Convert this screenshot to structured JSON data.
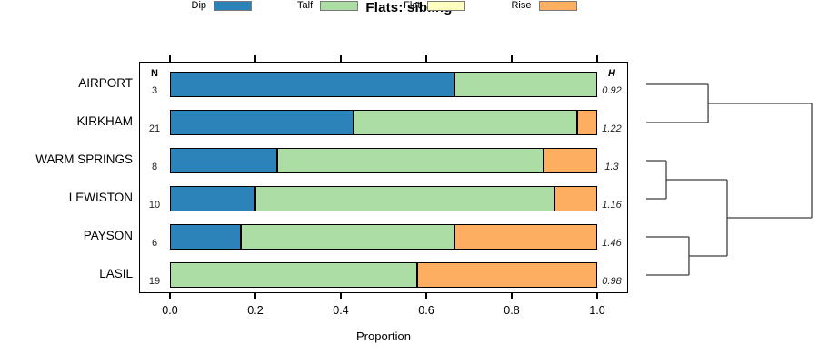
{
  "chart_data": {
    "type": "bar",
    "variant": "horizontal-stacked-with-dendrogram",
    "title": "Flats: sibling",
    "xlabel": "Proportion",
    "xlim": [
      0,
      1
    ],
    "xticks": [
      "0.0",
      "0.2",
      "0.4",
      "0.6",
      "0.8",
      "1.0"
    ],
    "n_header": "N",
    "h_header": "H",
    "legend": [
      {
        "label": "Dip",
        "color": "#2B83BA"
      },
      {
        "label": "Talf",
        "color": "#ABDDA4"
      },
      {
        "label": "Flat",
        "color": "#FFFFBF"
      },
      {
        "label": "Rise",
        "color": "#FDAE61"
      }
    ],
    "rows": [
      {
        "label": "AIRPORT",
        "n": 3,
        "h": "0.92",
        "values": [
          0.667,
          0.333,
          0,
          0
        ]
      },
      {
        "label": "KIRKHAM",
        "n": 21,
        "h": "1.22",
        "values": [
          0.429,
          0.524,
          0,
          0.048
        ]
      },
      {
        "label": "WARM SPRINGS",
        "n": 8,
        "h": "1.3",
        "values": [
          0.25,
          0.625,
          0,
          0.125
        ]
      },
      {
        "label": "LEWISTON",
        "n": 10,
        "h": "1.16",
        "values": [
          0.2,
          0.7,
          0,
          0.1
        ]
      },
      {
        "label": "PAYSON",
        "n": 6,
        "h": "1.46",
        "values": [
          0.167,
          0.5,
          0,
          0.333
        ]
      },
      {
        "label": "LASIL",
        "n": 19,
        "h": "0.98",
        "values": [
          0,
          0.579,
          0,
          0.421
        ]
      }
    ],
    "dendrogram": {
      "line_color": "#3F3F3F",
      "merges": [
        {
          "left": "leaf:0",
          "right": "leaf:1",
          "h": 0.374
        },
        {
          "left": "leaf:2",
          "right": "leaf:3",
          "h": 0.121
        },
        {
          "left": "leaf:4",
          "right": "leaf:5",
          "h": 0.258
        },
        {
          "left": "merge:1",
          "right": "merge:2",
          "h": 0.489
        },
        {
          "left": "merge:0",
          "right": "merge:3",
          "h": 1.0
        }
      ]
    },
    "colors": {
      "bar_border": "#000000",
      "box_border": "#000000"
    },
    "legend_position": "top",
    "grid": false
  }
}
